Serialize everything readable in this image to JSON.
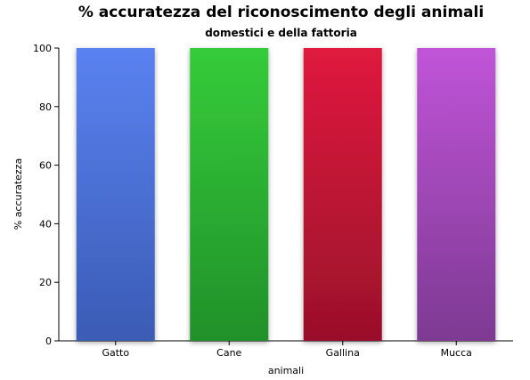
{
  "chart_data": {
    "type": "bar",
    "title": "% accuratezza del riconoscimento degli animali",
    "subtitle": "domestici e della fattoria",
    "xlabel": "animali",
    "ylabel": "% accuratezza",
    "categories": [
      "Gatto",
      "Cane",
      "Gallina",
      "Mucca"
    ],
    "values": [
      100,
      100,
      100,
      100
    ],
    "ylim": [
      0,
      100
    ],
    "yticks": [
      0,
      20,
      40,
      60,
      80,
      100
    ],
    "colors": [
      {
        "top": "#5a82f0",
        "bottom": "#3b5bb5"
      },
      {
        "top": "#35cc3a",
        "bottom": "#21902a"
      },
      {
        "top": "#e01a3e",
        "bottom": "#99102a"
      },
      {
        "top": "#c054d8",
        "bottom": "#7d3a92"
      }
    ],
    "grid": false,
    "legend": "none"
  }
}
